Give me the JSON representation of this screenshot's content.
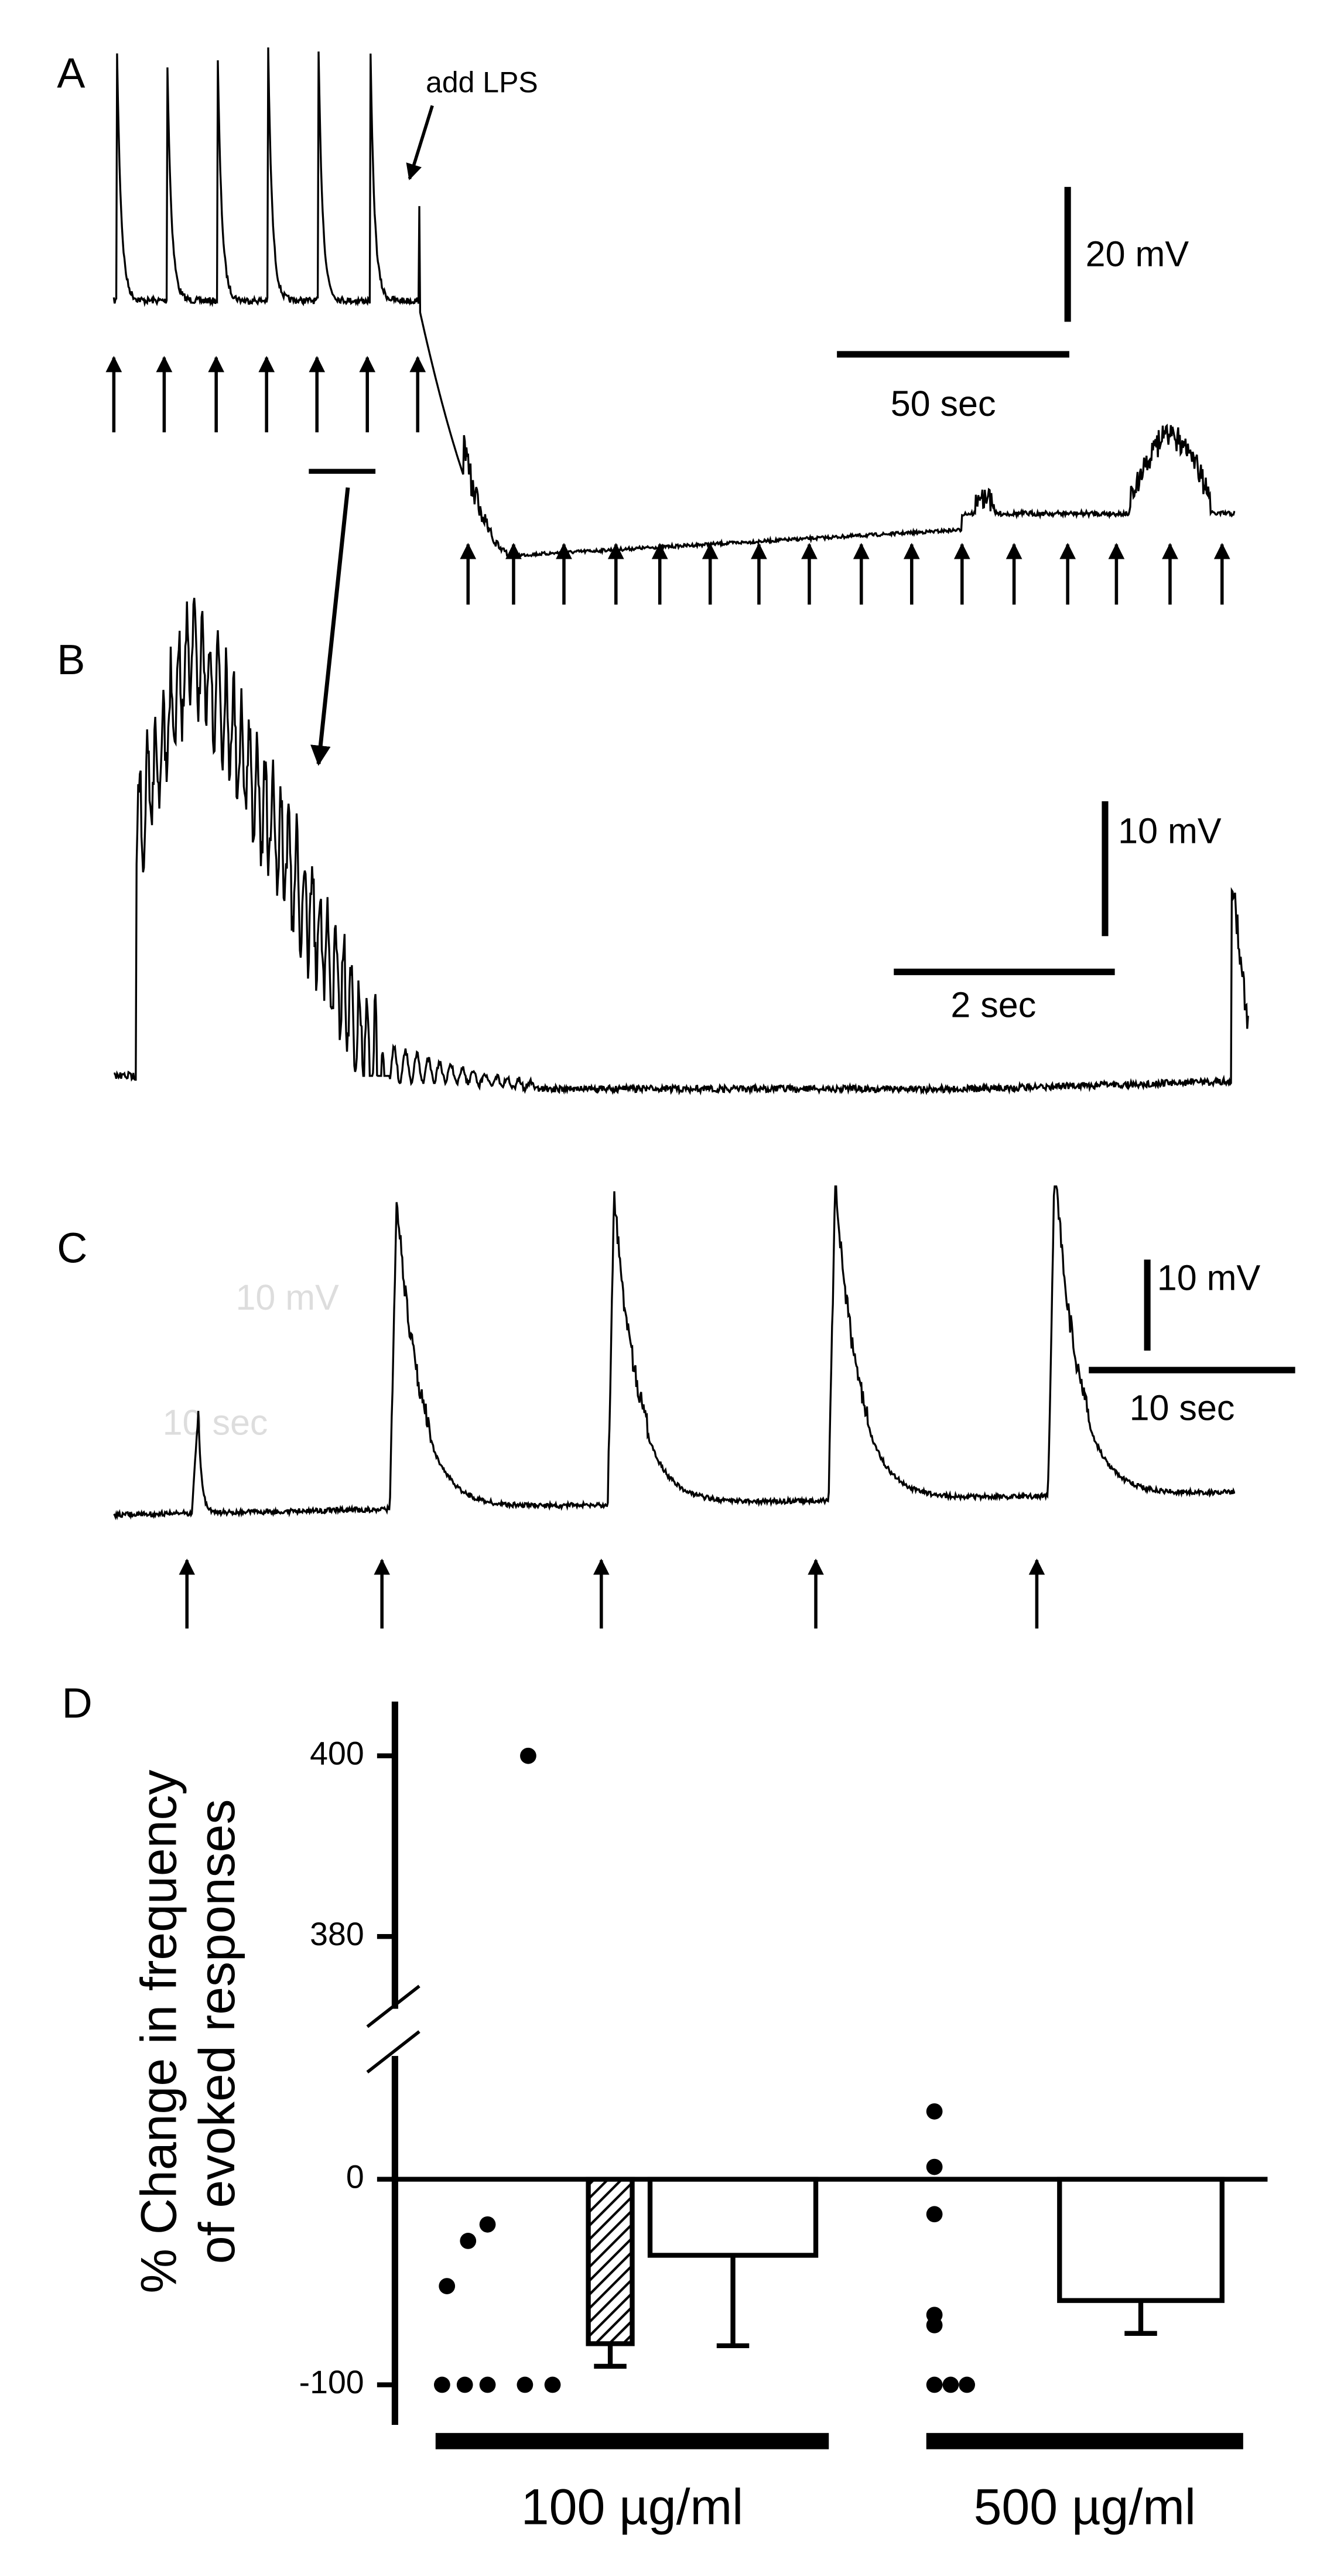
{
  "panel_a": {
    "label": "A",
    "annotation": "add LPS",
    "scale_v": "20 mV",
    "scale_t": "50 sec"
  },
  "panel_b": {
    "label": "B",
    "scale_v": "10 mV",
    "scale_t": "2 sec"
  },
  "panel_c": {
    "label": "C",
    "scale_v": "10 mV",
    "scale_t": "10 sec",
    "ghost_v": "10 mV",
    "ghost_t": "10 sec"
  },
  "chart_data": {
    "type": "dot_bar",
    "panel_label": "D",
    "y_label_line1": "% Change in frequency",
    "y_label_line2": "of evoked responses",
    "ylim_lower": [
      -110,
      60
    ],
    "ylim_upper": [
      372,
      406
    ],
    "yticks": [
      400,
      380,
      0,
      -100
    ],
    "groups": [
      {
        "label": "100 µg/ml",
        "points": [
          -100,
          -100,
          -100,
          -52,
          -30,
          -22,
          400,
          -100,
          -100
        ],
        "bars": [
          {
            "value": -80,
            "error": 11,
            "pattern": "hatched"
          },
          {
            "value": -37,
            "error": 44,
            "pattern": "open"
          }
        ]
      },
      {
        "label": "500 µg/ml",
        "points": [
          33,
          6,
          -17,
          -66,
          -71,
          -100,
          -100,
          -100
        ],
        "bars": [
          {
            "value": -59,
            "error": 16,
            "pattern": "open"
          }
        ]
      }
    ]
  }
}
